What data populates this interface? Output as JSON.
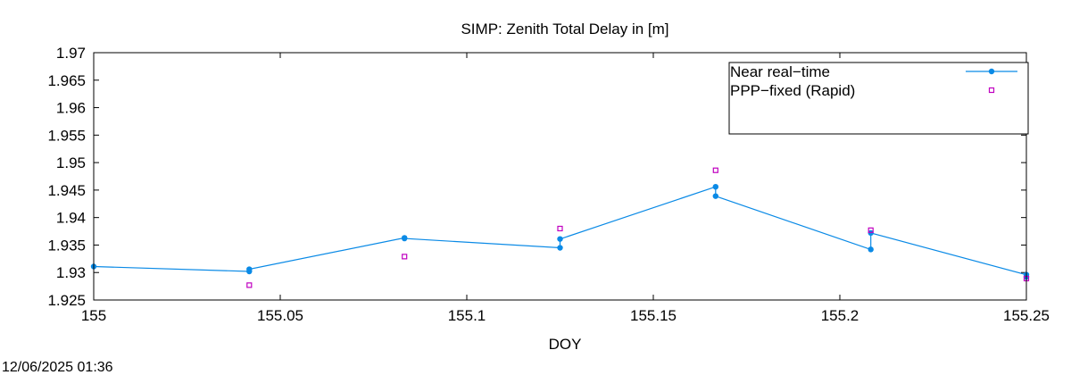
{
  "chart_data": {
    "type": "line",
    "title": "SIMP: Zenith Total Delay in [m]",
    "xlabel": "DOY",
    "ylabel": "",
    "xlim": [
      155,
      155.25
    ],
    "ylim": [
      1.925,
      1.97
    ],
    "x_ticks": [
      "155",
      "155.05",
      "155.1",
      "155.15",
      "155.2",
      "155.25"
    ],
    "x_tick_values": [
      155,
      155.05,
      155.1,
      155.15,
      155.2,
      155.25
    ],
    "y_ticks": [
      "1.925",
      "1.93",
      "1.935",
      "1.94",
      "1.945",
      "1.95",
      "1.955",
      "1.96",
      "1.965",
      "1.97"
    ],
    "y_tick_values": [
      1.925,
      1.93,
      1.935,
      1.94,
      1.945,
      1.95,
      1.955,
      1.96,
      1.965,
      1.97
    ],
    "grid": false,
    "legend_position": "top-right",
    "series": [
      {
        "name": "Near real−time",
        "style": "line-points",
        "color": "#0a8ae6",
        "x": [
          155.0,
          155.0417,
          155.0417,
          155.0833,
          155.0833,
          155.125,
          155.125,
          155.1667,
          155.1667,
          155.2083,
          155.2083,
          155.25,
          155.25
        ],
        "y": [
          1.9311,
          1.9302,
          1.9306,
          1.9363,
          1.9362,
          1.9345,
          1.9361,
          1.9456,
          1.9439,
          1.9342,
          1.9372,
          1.9296,
          1.9292
        ]
      },
      {
        "name": "PPP−fixed (Rapid)",
        "style": "points",
        "color": "#c000c0",
        "x": [
          155.0417,
          155.0833,
          155.125,
          155.1667,
          155.2083,
          155.25
        ],
        "y": [
          1.9277,
          1.9329,
          1.938,
          1.9486,
          1.9377,
          1.9289
        ]
      }
    ]
  },
  "footer": {
    "timestamp": "12/06/2025 01:36"
  }
}
